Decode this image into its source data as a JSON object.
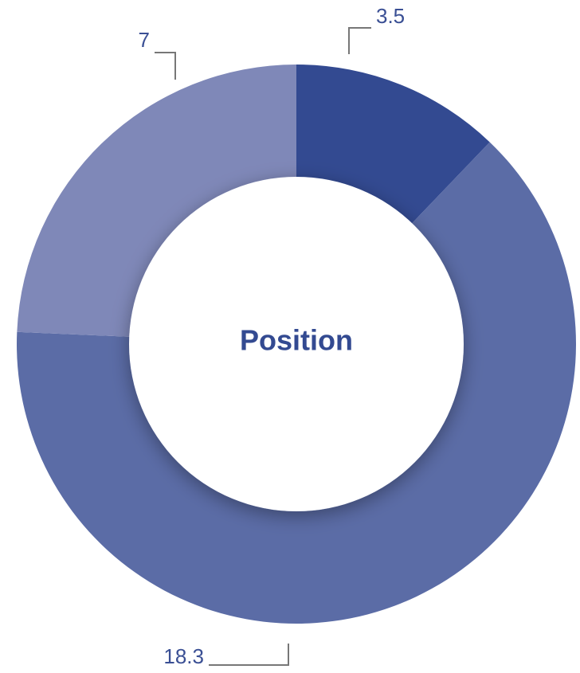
{
  "chart_data": {
    "type": "donut",
    "title": "Position",
    "values": [
      3.5,
      18.3,
      7
    ],
    "colors": [
      "#334a91",
      "#5b6ca6",
      "#7f88b8"
    ]
  }
}
